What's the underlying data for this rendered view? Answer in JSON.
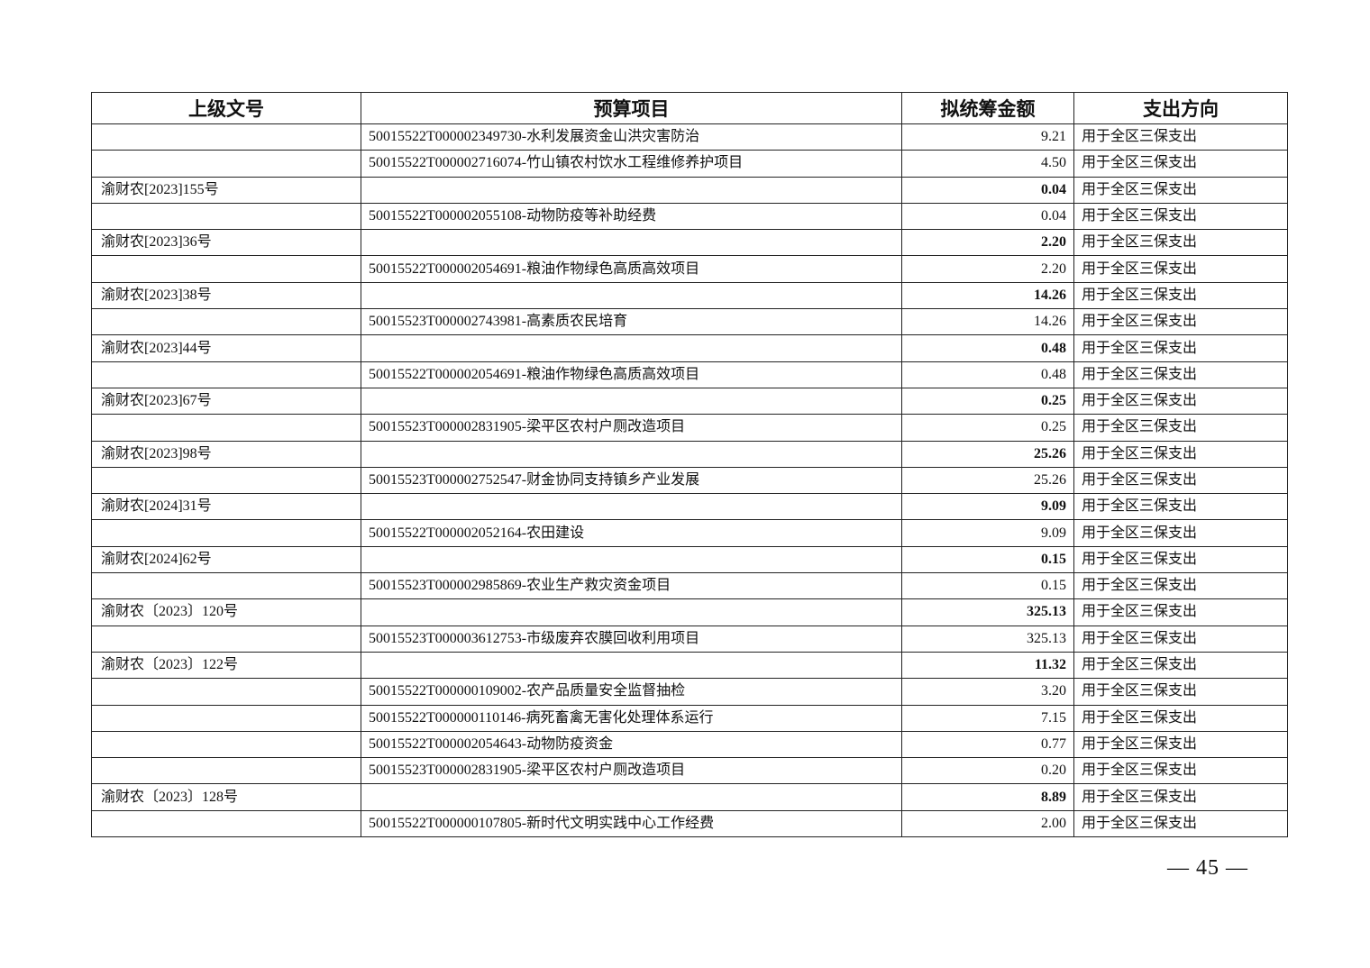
{
  "table": {
    "headers": [
      "上级文号",
      "预算项目",
      "拟统筹金额",
      "支出方向"
    ],
    "rows": [
      {
        "doc": "",
        "project": "50015522T000002349730-水利发展资金山洪灾害防治",
        "amount": "9.21",
        "bold": false,
        "direction": "用于全区三保支出"
      },
      {
        "doc": "",
        "project": "50015522T000002716074-竹山镇农村饮水工程维修养护项目",
        "amount": "4.50",
        "bold": false,
        "direction": "用于全区三保支出"
      },
      {
        "doc": "渝财农[2023]155号",
        "project": "",
        "amount": "0.04",
        "bold": true,
        "direction": "用于全区三保支出"
      },
      {
        "doc": "",
        "project": "50015522T000002055108-动物防疫等补助经费",
        "amount": "0.04",
        "bold": false,
        "direction": "用于全区三保支出"
      },
      {
        "doc": "渝财农[2023]36号",
        "project": "",
        "amount": "2.20",
        "bold": true,
        "direction": "用于全区三保支出"
      },
      {
        "doc": "",
        "project": "50015522T000002054691-粮油作物绿色高质高效项目",
        "amount": "2.20",
        "bold": false,
        "direction": "用于全区三保支出"
      },
      {
        "doc": "渝财农[2023]38号",
        "project": "",
        "amount": "14.26",
        "bold": true,
        "direction": "用于全区三保支出"
      },
      {
        "doc": "",
        "project": "50015523T000002743981-高素质农民培育",
        "amount": "14.26",
        "bold": false,
        "direction": "用于全区三保支出"
      },
      {
        "doc": "渝财农[2023]44号",
        "project": "",
        "amount": "0.48",
        "bold": true,
        "direction": "用于全区三保支出"
      },
      {
        "doc": "",
        "project": "50015522T000002054691-粮油作物绿色高质高效项目",
        "amount": "0.48",
        "bold": false,
        "direction": "用于全区三保支出"
      },
      {
        "doc": "渝财农[2023]67号",
        "project": "",
        "amount": "0.25",
        "bold": true,
        "direction": "用于全区三保支出"
      },
      {
        "doc": "",
        "project": "50015523T000002831905-梁平区农村户厕改造项目",
        "amount": "0.25",
        "bold": false,
        "direction": "用于全区三保支出"
      },
      {
        "doc": "渝财农[2023]98号",
        "project": "",
        "amount": "25.26",
        "bold": true,
        "direction": "用于全区三保支出"
      },
      {
        "doc": "",
        "project": "50015523T000002752547-财金协同支持镇乡产业发展",
        "amount": "25.26",
        "bold": false,
        "direction": "用于全区三保支出"
      },
      {
        "doc": "渝财农[2024]31号",
        "project": "",
        "amount": "9.09",
        "bold": true,
        "direction": "用于全区三保支出"
      },
      {
        "doc": "",
        "project": "50015522T000002052164-农田建设",
        "amount": "9.09",
        "bold": false,
        "direction": "用于全区三保支出"
      },
      {
        "doc": "渝财农[2024]62号",
        "project": "",
        "amount": "0.15",
        "bold": true,
        "direction": "用于全区三保支出"
      },
      {
        "doc": "",
        "project": "50015523T000002985869-农业生产救灾资金项目",
        "amount": "0.15",
        "bold": false,
        "direction": "用于全区三保支出"
      },
      {
        "doc": "渝财农〔2023〕120号",
        "project": "",
        "amount": "325.13",
        "bold": true,
        "direction": "用于全区三保支出"
      },
      {
        "doc": "",
        "project": "50015523T000003612753-市级废弃农膜回收利用项目",
        "amount": "325.13",
        "bold": false,
        "direction": "用于全区三保支出"
      },
      {
        "doc": "渝财农〔2023〕122号",
        "project": "",
        "amount": "11.32",
        "bold": true,
        "direction": "用于全区三保支出"
      },
      {
        "doc": "",
        "project": "50015522T000000109002-农产品质量安全监督抽检",
        "amount": "3.20",
        "bold": false,
        "direction": "用于全区三保支出"
      },
      {
        "doc": "",
        "project": "50015522T000000110146-病死畜禽无害化处理体系运行",
        "amount": "7.15",
        "bold": false,
        "direction": "用于全区三保支出"
      },
      {
        "doc": "",
        "project": "50015522T000002054643-动物防疫资金",
        "amount": "0.77",
        "bold": false,
        "direction": "用于全区三保支出"
      },
      {
        "doc": "",
        "project": "50015523T000002831905-梁平区农村户厕改造项目",
        "amount": "0.20",
        "bold": false,
        "direction": "用于全区三保支出"
      },
      {
        "doc": "渝财农〔2023〕128号",
        "project": "",
        "amount": "8.89",
        "bold": true,
        "direction": "用于全区三保支出"
      },
      {
        "doc": "",
        "project": "50015522T000000107805-新时代文明实践中心工作经费",
        "amount": "2.00",
        "bold": false,
        "direction": "用于全区三保支出"
      }
    ]
  },
  "footer": {
    "page_number": "— 45 —"
  }
}
